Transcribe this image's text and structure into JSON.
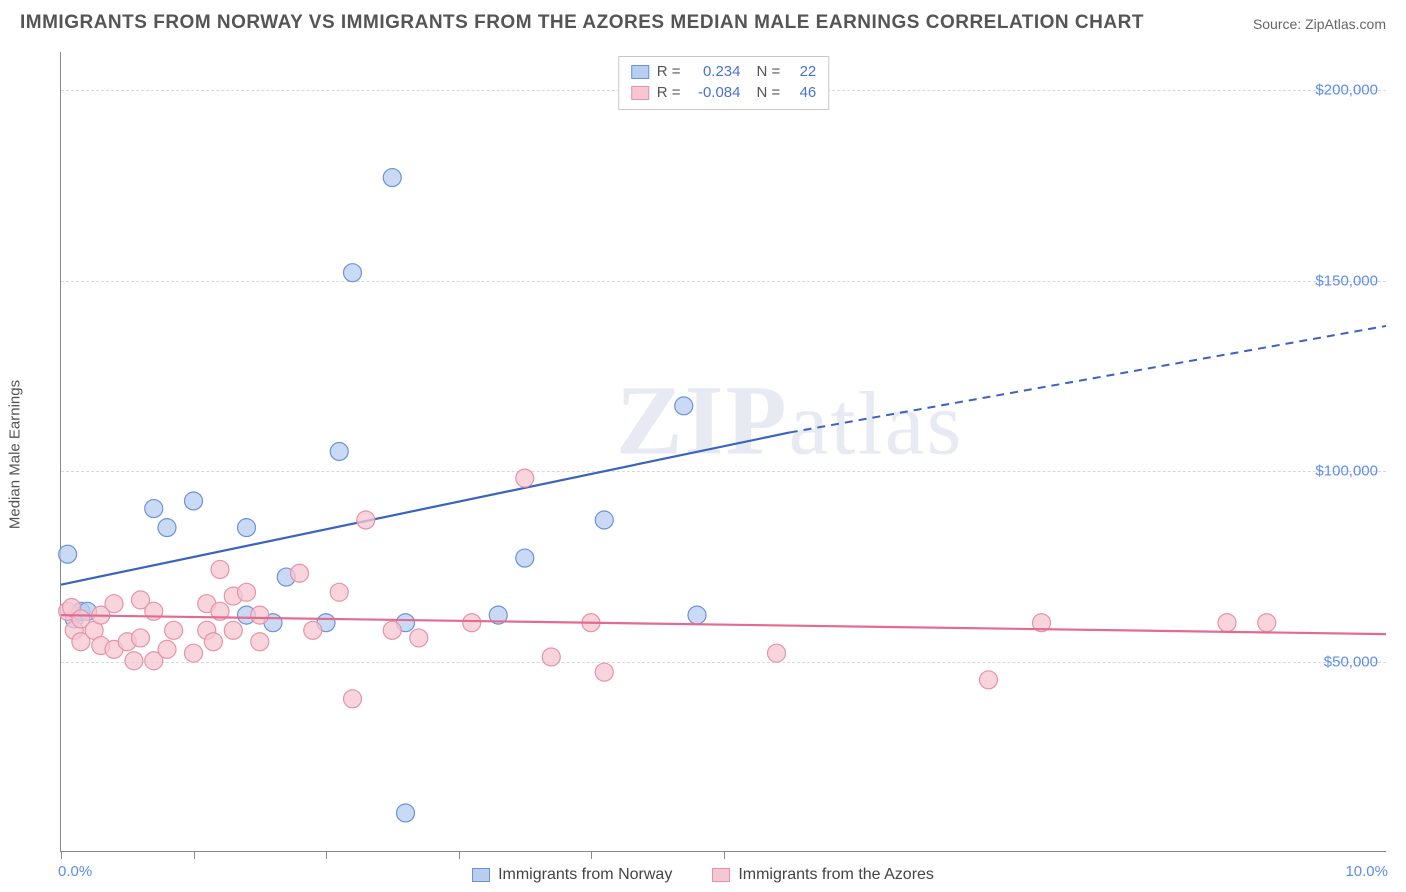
{
  "title": "IMMIGRANTS FROM NORWAY VS IMMIGRANTS FROM THE AZORES MEDIAN MALE EARNINGS CORRELATION CHART",
  "source": "Source: ZipAtlas.com",
  "y_axis_label": "Median Male Earnings",
  "watermark": "ZIPatlas",
  "chart": {
    "type": "scatter-with-trend",
    "background": "#ffffff",
    "grid_color": "#d8d8d8",
    "axis_color": "#888888",
    "x_range": [
      0,
      10
    ],
    "y_range": [
      0,
      210000
    ],
    "x_min_label": "0.0%",
    "x_max_label": "10.0%",
    "y_ticks": [
      {
        "value": 50000,
        "label": "$50,000"
      },
      {
        "value": 100000,
        "label": "$100,000"
      },
      {
        "value": 150000,
        "label": "$150,000"
      },
      {
        "value": 200000,
        "label": "$200,000"
      }
    ],
    "x_tick_positions": [
      0,
      1,
      2,
      3,
      4,
      5
    ],
    "series": [
      {
        "key": "norway",
        "name": "Immigrants from Norway",
        "color_fill": "#b8cdf0",
        "color_stroke": "#6a93d8",
        "line_color": "#3a63c1",
        "marker_radius": 9,
        "marker_opacity": 0.75,
        "stats": {
          "R": "0.234",
          "N": "22"
        },
        "points": [
          [
            0.05,
            78000
          ],
          [
            0.1,
            61000
          ],
          [
            0.15,
            63000
          ],
          [
            0.2,
            63000
          ],
          [
            0.7,
            90000
          ],
          [
            0.8,
            85000
          ],
          [
            1.0,
            92000
          ],
          [
            1.4,
            85000
          ],
          [
            1.4,
            62000
          ],
          [
            1.6,
            60000
          ],
          [
            1.7,
            72000
          ],
          [
            2.0,
            60000
          ],
          [
            2.1,
            105000
          ],
          [
            2.2,
            152000
          ],
          [
            2.5,
            177000
          ],
          [
            2.6,
            60000
          ],
          [
            2.6,
            10000
          ],
          [
            3.3,
            62000
          ],
          [
            3.5,
            77000
          ],
          [
            4.1,
            87000
          ],
          [
            4.7,
            117000
          ],
          [
            4.8,
            62000
          ]
        ],
        "trend": {
          "x1": 0.0,
          "y1": 70000,
          "x2": 5.5,
          "y2": 110000,
          "dash_x2": 10.0,
          "dash_y2": 138000
        }
      },
      {
        "key": "azores",
        "name": "Immigrants from the Azores",
        "color_fill": "#f6c7d2",
        "color_stroke": "#e792a8",
        "line_color": "#e36b8f",
        "marker_radius": 9,
        "marker_opacity": 0.75,
        "stats": {
          "R": "-0.084",
          "N": "46"
        },
        "points": [
          [
            0.05,
            63000
          ],
          [
            0.08,
            64000
          ],
          [
            0.1,
            58000
          ],
          [
            0.15,
            61000
          ],
          [
            0.15,
            55000
          ],
          [
            0.25,
            58000
          ],
          [
            0.3,
            62000
          ],
          [
            0.3,
            54000
          ],
          [
            0.4,
            53000
          ],
          [
            0.4,
            65000
          ],
          [
            0.5,
            55000
          ],
          [
            0.55,
            50000
          ],
          [
            0.6,
            56000
          ],
          [
            0.6,
            66000
          ],
          [
            0.7,
            50000
          ],
          [
            0.7,
            63000
          ],
          [
            0.8,
            53000
          ],
          [
            0.85,
            58000
          ],
          [
            1.0,
            52000
          ],
          [
            1.1,
            58000
          ],
          [
            1.1,
            65000
          ],
          [
            1.15,
            55000
          ],
          [
            1.2,
            74000
          ],
          [
            1.2,
            63000
          ],
          [
            1.3,
            67000
          ],
          [
            1.3,
            58000
          ],
          [
            1.4,
            68000
          ],
          [
            1.5,
            62000
          ],
          [
            1.5,
            55000
          ],
          [
            1.8,
            73000
          ],
          [
            1.9,
            58000
          ],
          [
            2.1,
            68000
          ],
          [
            2.2,
            40000
          ],
          [
            2.3,
            87000
          ],
          [
            2.5,
            58000
          ],
          [
            2.7,
            56000
          ],
          [
            3.1,
            60000
          ],
          [
            3.5,
            98000
          ],
          [
            3.7,
            51000
          ],
          [
            4.0,
            60000
          ],
          [
            4.1,
            47000
          ],
          [
            5.4,
            52000
          ],
          [
            7.0,
            45000
          ],
          [
            7.4,
            60000
          ],
          [
            8.8,
            60000
          ],
          [
            9.1,
            60000
          ]
        ],
        "trend": {
          "x1": 0.0,
          "y1": 62000,
          "x2": 10.0,
          "y2": 57000
        }
      }
    ],
    "stats_box_labels": {
      "R": "R =",
      "N": "N ="
    }
  }
}
